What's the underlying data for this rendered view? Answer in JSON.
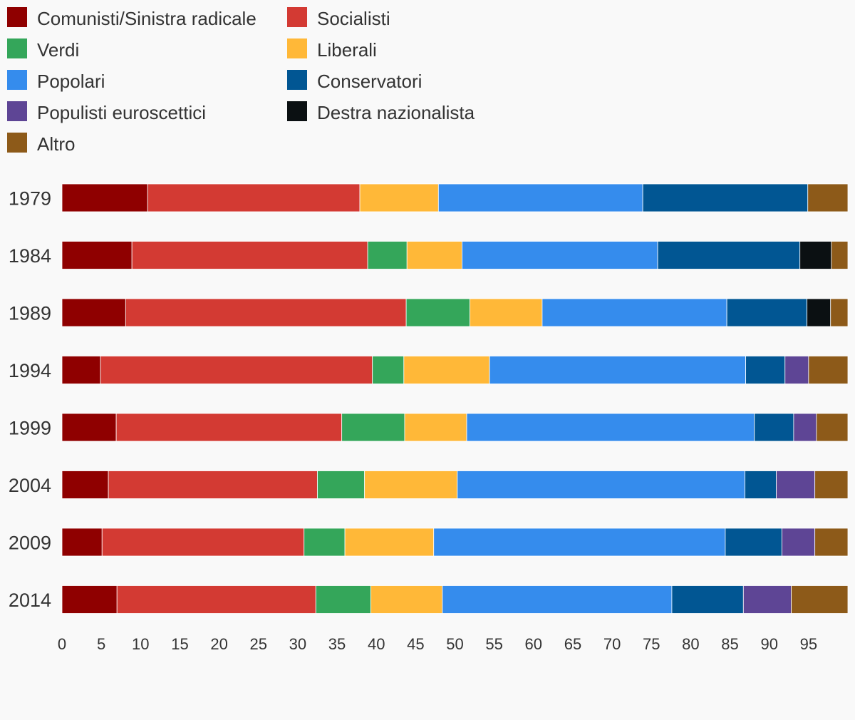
{
  "chart_data": {
    "type": "bar",
    "orientation": "horizontal",
    "stacked": true,
    "categories": [
      "1979",
      "1984",
      "1989",
      "1994",
      "1999",
      "2004",
      "2009",
      "2014"
    ],
    "series": [
      {
        "name": "Comunisti/Sinistra radicale",
        "color": "#8f0000",
        "values": [
          10.9,
          8.9,
          8.1,
          4.9,
          6.9,
          5.9,
          5.1,
          7.0
        ]
      },
      {
        "name": "Socialisti",
        "color": "#d33a33",
        "values": [
          27.0,
          30.0,
          35.7,
          34.6,
          28.7,
          26.6,
          25.7,
          25.3
        ]
      },
      {
        "name": "Verdi",
        "color": "#34a65a",
        "values": [
          0,
          5.0,
          8.1,
          4.0,
          8.0,
          6.0,
          5.2,
          7.0
        ]
      },
      {
        "name": "Liberali",
        "color": "#ffb838",
        "values": [
          10.0,
          7.0,
          9.2,
          10.9,
          7.9,
          11.8,
          11.3,
          9.1
        ]
      },
      {
        "name": "Popolari",
        "color": "#358ced",
        "values": [
          26.0,
          24.9,
          23.5,
          32.6,
          36.6,
          36.6,
          37.1,
          29.2
        ]
      },
      {
        "name": "Conservatori",
        "color": "#015693",
        "values": [
          21.0,
          18.1,
          10.2,
          5.0,
          5.0,
          4.0,
          7.2,
          9.1
        ]
      },
      {
        "name": "Populisti euroscettici",
        "color": "#5e4595",
        "values": [
          0,
          0,
          0,
          3.0,
          2.9,
          4.9,
          4.2,
          6.1
        ]
      },
      {
        "name": "Destra nazionalista",
        "color": "#0b1012",
        "values": [
          0,
          4.0,
          3.0,
          0,
          0,
          0,
          0,
          0
        ]
      },
      {
        "name": "Altro",
        "color": "#8d5a19",
        "values": [
          5.1,
          2.1,
          2.2,
          5.0,
          4.0,
          4.2,
          4.2,
          7.2
        ]
      }
    ],
    "xlim": [
      0,
      100
    ],
    "x_ticks": [
      0,
      5,
      10,
      15,
      20,
      25,
      30,
      35,
      40,
      45,
      50,
      55,
      60,
      65,
      70,
      75,
      80,
      85,
      90,
      95
    ],
    "legend_position": "top-left",
    "grid": false
  }
}
